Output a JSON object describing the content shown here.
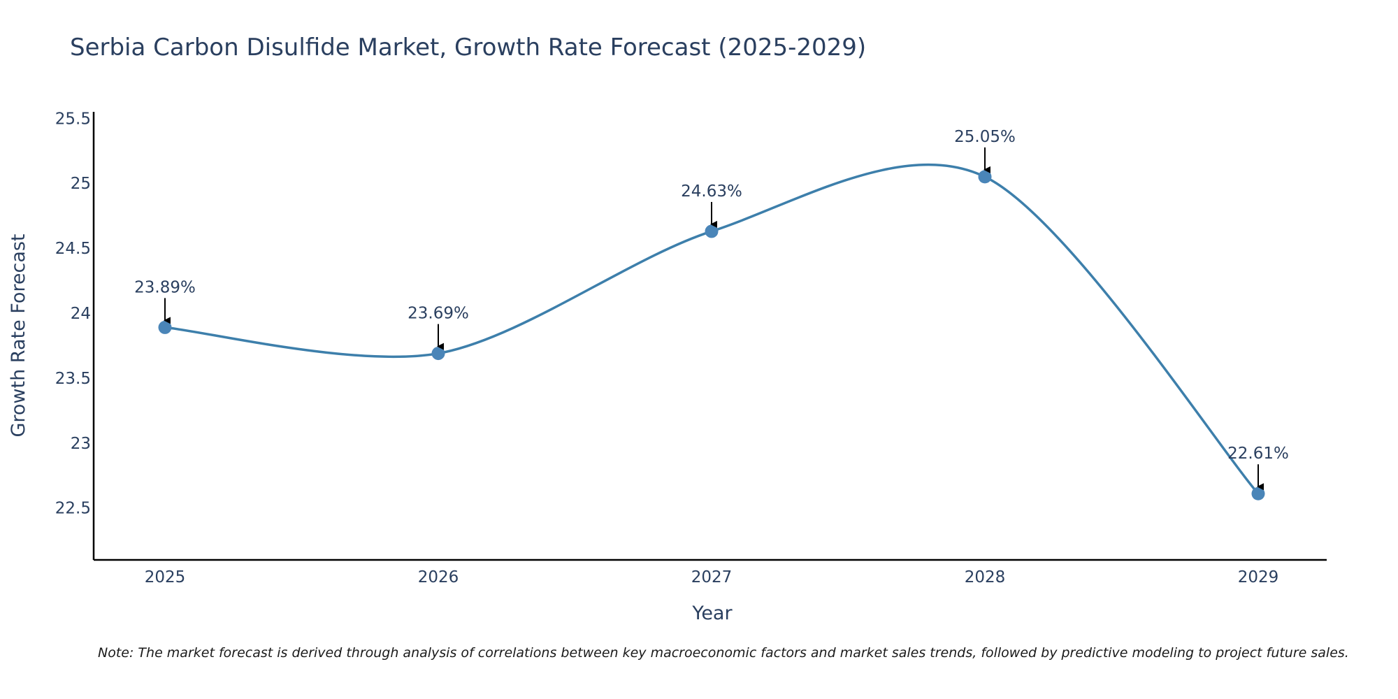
{
  "chart_data": {
    "type": "line",
    "title": "Serbia Carbon Disulfide Market, Growth Rate Forecast (2025-2029)",
    "xlabel": "Year",
    "ylabel": "Growth Rate Forecast",
    "categories": [
      "2025",
      "2026",
      "2027",
      "2028",
      "2029"
    ],
    "values": [
      23.89,
      23.69,
      24.63,
      25.05,
      22.61
    ],
    "data_labels": [
      "23.89%",
      "23.69%",
      "24.63%",
      "25.05%",
      "22.61%"
    ],
    "ylim": [
      22.1,
      25.55
    ],
    "yticks": [
      22.5,
      23,
      23.5,
      24,
      24.5,
      25,
      25.5
    ],
    "ytick_labels": [
      "22.5",
      "23",
      "23.5",
      "24",
      "24.5",
      "25",
      "25.5"
    ],
    "line_color": "#3d7fab",
    "marker_color": "#4a85b8",
    "grid": false,
    "note": "Note: The market forecast is derived through analysis of correlations between key macroeconomic factors and market sales trends, followed by predictive modeling to project future sales."
  }
}
